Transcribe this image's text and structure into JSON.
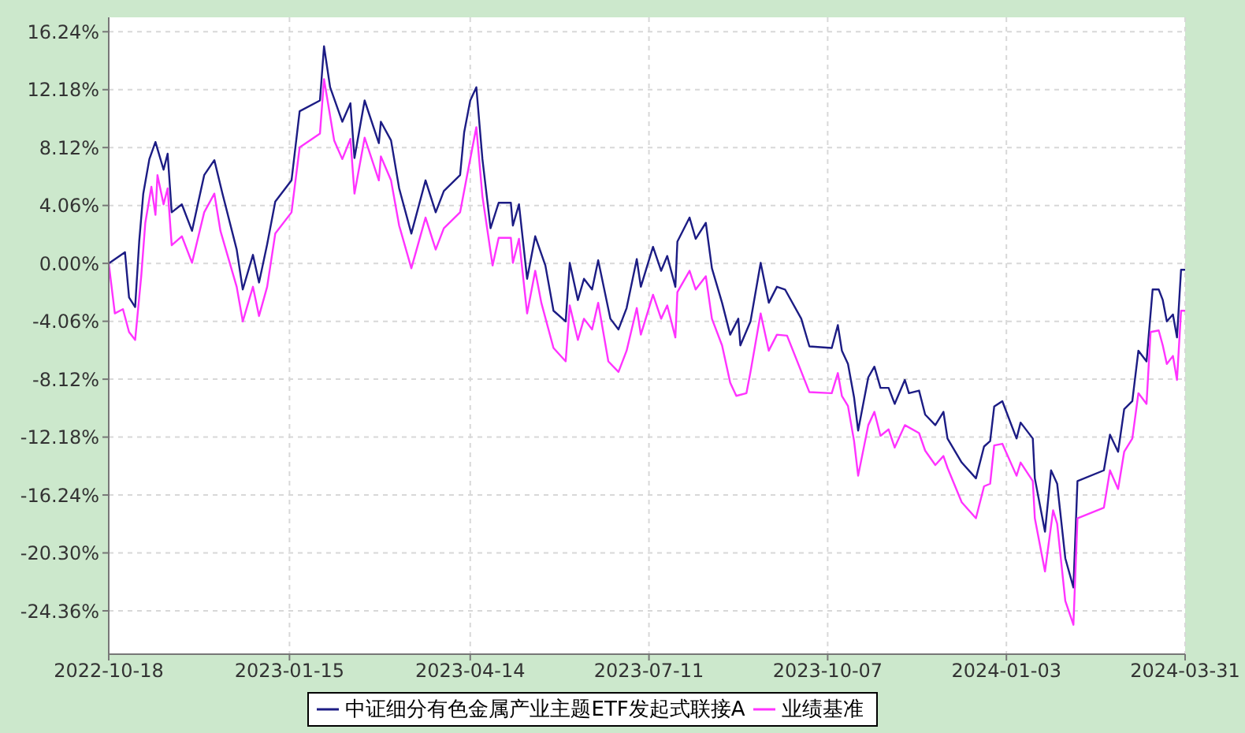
{
  "chart_data": {
    "type": "line",
    "xlim": [
      "2022-10-18",
      "2024-03-31"
    ],
    "xticks": [
      "2022-10-18",
      "2023-01-15",
      "2023-04-14",
      "2023-07-11",
      "2023-10-07",
      "2024-01-03",
      "2024-03-31"
    ],
    "ylim": [
      -27.4,
      17.25
    ],
    "yticks": [
      {
        "value": -24.36,
        "label": "-24.36%"
      },
      {
        "value": -20.3,
        "label": "-20.30%"
      },
      {
        "value": -16.24,
        "label": "-16.24%"
      },
      {
        "value": -12.18,
        "label": "-12.18%"
      },
      {
        "value": -8.12,
        "label": "-8.12%"
      },
      {
        "value": -4.06,
        "label": "-4.06%"
      },
      {
        "value": 0,
        "label": "0.00%"
      },
      {
        "value": 4.06,
        "label": "4.06%"
      },
      {
        "value": 8.12,
        "label": "8.12%"
      },
      {
        "value": 12.18,
        "label": "12.18%"
      },
      {
        "value": 16.24,
        "label": "16.24%"
      }
    ],
    "grid": true,
    "legend": "bottom",
    "marker": "none",
    "line_style": "solid",
    "series": [
      {
        "name": "中证细分有色金属产业主题ETF发起式联接A",
        "color": "#1c1c84",
        "x": [
          "2022-10-18",
          "2022-10-26",
          "2022-10-28",
          "2022-10-31",
          "2022-11-02",
          "2022-11-04",
          "2022-11-07",
          "2022-11-10",
          "2022-11-14",
          "2022-11-16",
          "2022-11-18",
          "2022-11-23",
          "2022-11-28",
          "2022-12-04",
          "2022-12-09",
          "2022-12-13",
          "2022-12-20",
          "2022-12-23",
          "2022-12-28",
          "2022-12-31",
          "2023-01-04",
          "2023-01-08",
          "2023-01-16",
          "2023-01-20",
          "2023-01-30",
          "2023-02-01",
          "2023-02-04",
          "2023-02-10",
          "2023-02-14",
          "2023-02-16",
          "2023-02-21",
          "2023-02-28",
          "2023-03-01",
          "2023-03-06",
          "2023-03-10",
          "2023-03-16",
          "2023-03-23",
          "2023-03-28",
          "2023-04-01",
          "2023-04-09",
          "2023-04-11",
          "2023-04-14",
          "2023-04-17",
          "2023-04-20",
          "2023-04-24",
          "2023-04-28",
          "2023-05-04",
          "2023-05-05",
          "2023-05-08",
          "2023-05-12",
          "2023-05-16",
          "2023-05-21",
          "2023-05-25",
          "2023-05-31",
          "2023-06-02",
          "2023-06-06",
          "2023-06-09",
          "2023-06-13",
          "2023-06-16",
          "2023-06-22",
          "2023-06-26",
          "2023-06-30",
          "2023-07-05",
          "2023-07-07",
          "2023-07-13",
          "2023-07-17",
          "2023-07-20",
          "2023-07-24",
          "2023-07-25",
          "2023-07-31",
          "2023-08-03",
          "2023-08-08",
          "2023-08-11",
          "2023-08-16",
          "2023-08-20",
          "2023-08-24",
          "2023-08-25",
          "2023-08-30",
          "2023-09-04",
          "2023-09-08",
          "2023-09-12",
          "2023-09-16",
          "2023-09-24",
          "2023-09-28",
          "2023-10-09",
          "2023-10-12",
          "2023-10-14",
          "2023-10-17",
          "2023-10-20",
          "2023-10-22",
          "2023-10-27",
          "2023-10-30",
          "2023-11-02",
          "2023-11-06",
          "2023-11-09",
          "2023-11-14",
          "2023-11-16",
          "2023-11-21",
          "2023-11-24",
          "2023-11-29",
          "2023-12-03",
          "2023-12-05",
          "2023-12-12",
          "2023-12-19",
          "2023-12-23",
          "2023-12-26",
          "2023-12-28",
          "2024-01-01",
          "2024-01-08",
          "2024-01-10",
          "2024-01-16",
          "2024-01-17",
          "2024-01-22",
          "2024-01-25",
          "2024-01-28",
          "2024-02-01",
          "2024-02-05",
          "2024-02-07",
          "2024-02-20",
          "2024-02-23",
          "2024-02-27",
          "2024-03-01",
          "2024-03-05",
          "2024-03-08",
          "2024-03-12",
          "2024-03-15",
          "2024-03-18",
          "2024-03-20",
          "2024-03-22",
          "2024-03-25",
          "2024-03-27",
          "2024-03-29",
          "2024-03-31"
        ],
        "values": [
          0,
          0.78,
          -2.39,
          -3.06,
          1.53,
          4.89,
          7.31,
          8.51,
          6.57,
          7.69,
          3.58,
          4.14,
          2.28,
          6.19,
          7.24,
          4.89,
          0.97,
          -1.83,
          0.6,
          -1.34,
          1.34,
          4.33,
          5.82,
          10.67,
          11.42,
          15.22,
          12.35,
          9.93,
          11.23,
          7.39,
          11.42,
          8.43,
          9.93,
          8.62,
          5.26,
          2.09,
          5.82,
          3.58,
          5.07,
          6.19,
          9.18,
          11.42,
          12.35,
          7.31,
          2.46,
          4.25,
          4.25,
          2.65,
          4.14,
          -1.08,
          1.9,
          -0.15,
          -3.32,
          -4.07,
          0.04,
          -2.57,
          -1.08,
          -1.83,
          0.22,
          -3.88,
          -4.63,
          -3.13,
          0.3,
          -1.64,
          1.16,
          -0.52,
          0.52,
          -1.64,
          1.53,
          3.21,
          1.72,
          2.84,
          -0.34,
          -2.76,
          -5.0,
          -3.88,
          -5.75,
          -4.07,
          0.04,
          -2.76,
          -1.64,
          -1.83,
          -3.88,
          -5.82,
          -5.93,
          -4.33,
          -6.12,
          -7.05,
          -9.4,
          -11.72,
          -7.99,
          -7.24,
          -8.73,
          -8.73,
          -9.85,
          -8.17,
          -9.1,
          -8.92,
          -10.6,
          -11.34,
          -10.41,
          -12.28,
          -13.96,
          -15.07,
          -12.84,
          -12.46,
          -10.04,
          -9.66,
          -12.28,
          -11.16,
          -12.28,
          -15.07,
          -18.81,
          -14.51,
          -15.45,
          -20.67,
          -22.72,
          -15.26,
          -14.51,
          -12.01,
          -13.21,
          -10.22,
          -9.66,
          -6.12,
          -6.87,
          -1.83,
          -1.83,
          -2.57,
          -4.07,
          -3.58,
          -5.19,
          -0.45,
          -0.45
        ]
      },
      {
        "name": "业绩基准",
        "color": "#ff33ff",
        "x": [
          "2022-10-18",
          "2022-10-21",
          "2022-10-25",
          "2022-10-28",
          "2022-10-31",
          "2022-11-03",
          "2022-11-05",
          "2022-11-08",
          "2022-11-10",
          "2022-11-11",
          "2022-11-14",
          "2022-11-16",
          "2022-11-18",
          "2022-11-23",
          "2022-11-28",
          "2022-12-04",
          "2022-12-09",
          "2022-12-12",
          "2022-12-20",
          "2022-12-23",
          "2022-12-28",
          "2022-12-31",
          "2023-01-04",
          "2023-01-08",
          "2023-01-16",
          "2023-01-20",
          "2023-01-30",
          "2023-02-01",
          "2023-02-06",
          "2023-02-10",
          "2023-02-14",
          "2023-02-16",
          "2023-02-21",
          "2023-02-28",
          "2023-03-01",
          "2023-03-06",
          "2023-03-10",
          "2023-03-16",
          "2023-03-23",
          "2023-03-28",
          "2023-04-01",
          "2023-04-09",
          "2023-04-13",
          "2023-04-17",
          "2023-04-20",
          "2023-04-25",
          "2023-04-28",
          "2023-05-04",
          "2023-05-05",
          "2023-05-08",
          "2023-05-12",
          "2023-05-16",
          "2023-05-19",
          "2023-05-25",
          "2023-05-31",
          "2023-06-02",
          "2023-06-06",
          "2023-06-09",
          "2023-06-13",
          "2023-06-16",
          "2023-06-21",
          "2023-06-26",
          "2023-06-30",
          "2023-07-05",
          "2023-07-07",
          "2023-07-13",
          "2023-07-17",
          "2023-07-20",
          "2023-07-24",
          "2023-07-25",
          "2023-07-31",
          "2023-08-03",
          "2023-08-08",
          "2023-08-11",
          "2023-08-16",
          "2023-08-20",
          "2023-08-23",
          "2023-08-28",
          "2023-08-30",
          "2023-09-04",
          "2023-09-08",
          "2023-09-12",
          "2023-09-17",
          "2023-09-28",
          "2023-10-09",
          "2023-10-12",
          "2023-10-14",
          "2023-10-17",
          "2023-10-20",
          "2023-10-22",
          "2023-10-27",
          "2023-10-30",
          "2023-11-02",
          "2023-11-06",
          "2023-11-09",
          "2023-11-14",
          "2023-11-21",
          "2023-11-24",
          "2023-11-29",
          "2023-12-03",
          "2023-12-05",
          "2023-12-12",
          "2023-12-19",
          "2023-12-23",
          "2023-12-26",
          "2023-12-28",
          "2024-01-01",
          "2024-01-08",
          "2024-01-10",
          "2024-01-16",
          "2024-01-17",
          "2024-01-22",
          "2024-01-26",
          "2024-01-28",
          "2024-02-01",
          "2024-02-05",
          "2024-02-07",
          "2024-02-20",
          "2024-02-23",
          "2024-02-27",
          "2024-03-01",
          "2024-03-05",
          "2024-03-08",
          "2024-03-12",
          "2024-03-14",
          "2024-03-18",
          "2024-03-20",
          "2024-03-22",
          "2024-03-25",
          "2024-03-27",
          "2024-03-29",
          "2024-03-31"
        ],
        "values": [
          0,
          -3.51,
          -3.21,
          -4.81,
          -5.37,
          -0.9,
          2.84,
          5.37,
          3.4,
          6.19,
          4.14,
          5.26,
          1.27,
          1.9,
          0.04,
          3.58,
          4.89,
          2.28,
          -1.64,
          -4.07,
          -1.64,
          -3.69,
          -1.64,
          2.09,
          3.58,
          8.13,
          9.1,
          12.91,
          8.62,
          7.31,
          8.73,
          4.89,
          8.81,
          5.82,
          7.5,
          5.82,
          2.65,
          -0.34,
          3.21,
          0.97,
          2.46,
          3.58,
          6.57,
          9.55,
          4.7,
          -0.15,
          1.79,
          1.79,
          0.04,
          1.72,
          -3.51,
          -0.52,
          -2.76,
          -5.93,
          -6.87,
          -2.95,
          -5.37,
          -3.88,
          -4.63,
          -2.76,
          -6.87,
          -7.61,
          -6.12,
          -3.13,
          -5.0,
          -2.2,
          -3.88,
          -2.95,
          -5.19,
          -2.01,
          -0.52,
          -1.83,
          -0.9,
          -3.88,
          -5.75,
          -8.36,
          -9.29,
          -9.1,
          -7.61,
          -3.51,
          -6.12,
          -5.0,
          -5.07,
          -9.03,
          -9.1,
          -7.69,
          -9.29,
          -10.0,
          -12.46,
          -14.89,
          -11.34,
          -10.41,
          -12.09,
          -11.64,
          -12.91,
          -11.34,
          -11.9,
          -13.13,
          -14.14,
          -13.51,
          -14.33,
          -16.75,
          -17.87,
          -15.63,
          -15.45,
          -12.76,
          -12.65,
          -14.89,
          -13.96,
          -15.26,
          -17.87,
          -21.6,
          -17.31,
          -18.25,
          -23.66,
          -25.34,
          -17.87,
          -17.13,
          -14.51,
          -15.82,
          -13.21,
          -12.28,
          -9.1,
          -9.85,
          -4.81,
          -4.7,
          -5.75,
          -7.05,
          -6.49,
          -8.17,
          -3.32,
          -3.32
        ]
      }
    ]
  }
}
